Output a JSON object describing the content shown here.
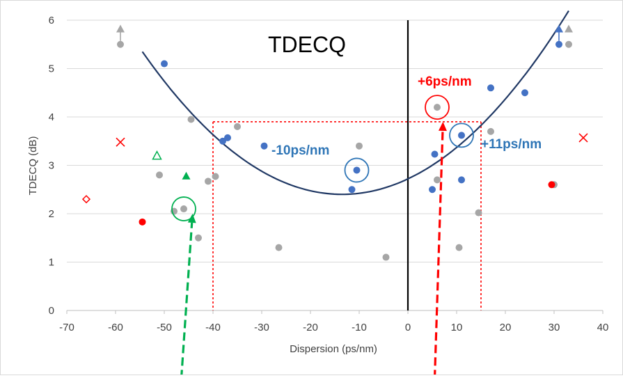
{
  "chart_data": {
    "type": "scatter",
    "title": "TDECQ",
    "xlabel": "Dispersion (ps/nm)",
    "ylabel": "TDECQ (dB)",
    "xlim": [
      -70,
      40
    ],
    "ylim": [
      0,
      6
    ],
    "x_ticks": [
      "-70",
      "-60",
      "-50",
      "-40",
      "-30",
      "-20",
      "-10",
      "0",
      "10",
      "20",
      "30",
      "40"
    ],
    "y_ticks": [
      "0",
      "1",
      "2",
      "3",
      "4",
      "5",
      "6"
    ],
    "grid": "horizontal",
    "colors": {
      "gray": "#a6a6a6",
      "blue": "#4472c4",
      "red": "#ff0000",
      "green": "#00b050",
      "curve": "#203864",
      "annotation_blue": "#2e75b6",
      "annotation_red": "#ff0000",
      "axis_zero": "#000000"
    },
    "series": [
      {
        "marker": "circle",
        "color": "gray",
        "points": [
          [
            -59,
            5.5
          ],
          [
            -51,
            2.8
          ],
          [
            -48,
            2.05
          ],
          [
            -46,
            2.1
          ],
          [
            -44.5,
            3.95
          ],
          [
            -43,
            1.5
          ],
          [
            -41,
            2.67
          ],
          [
            -39.5,
            2.77
          ],
          [
            -35,
            3.8
          ],
          [
            -26.5,
            1.3
          ],
          [
            -10,
            3.4
          ],
          [
            -4.5,
            1.1
          ],
          [
            6,
            4.2
          ],
          [
            6,
            2.7
          ],
          [
            10.5,
            1.3
          ],
          [
            14.5,
            2.02
          ],
          [
            17,
            3.7
          ],
          [
            30,
            2.6
          ],
          [
            33,
            5.5
          ]
        ]
      },
      {
        "marker": "circle",
        "color": "blue",
        "points": [
          [
            -50,
            5.1
          ],
          [
            -38,
            3.5
          ],
          [
            -37,
            3.57
          ],
          [
            -29.5,
            3.4
          ],
          [
            -11.5,
            2.5
          ],
          [
            -10.5,
            2.9
          ],
          [
            5,
            2.5
          ],
          [
            5.5,
            3.23
          ],
          [
            11,
            3.62
          ],
          [
            11,
            2.7
          ],
          [
            17,
            4.6
          ],
          [
            24,
            4.5
          ],
          [
            31,
            5.5
          ]
        ]
      },
      {
        "marker": "circle",
        "color": "red",
        "points": [
          [
            -54.5,
            1.83
          ],
          [
            29.5,
            2.6
          ]
        ]
      },
      {
        "marker": "x",
        "color": "red",
        "points": [
          [
            -59,
            3.48
          ],
          [
            36,
            3.57
          ]
        ]
      },
      {
        "marker": "diamond-open",
        "color": "red",
        "points": [
          [
            -66,
            2.3
          ]
        ]
      },
      {
        "marker": "triangle-open",
        "color": "green",
        "points": [
          [
            -51.5,
            3.2
          ]
        ]
      },
      {
        "marker": "triangle",
        "color": "green",
        "points": [
          [
            -45.5,
            2.78
          ]
        ]
      },
      {
        "marker": "triangle",
        "color": "gray",
        "points": [
          [
            -59,
            5.82
          ],
          [
            33,
            5.82
          ]
        ]
      },
      {
        "marker": "triangle",
        "color": "blue",
        "points": [
          [
            31,
            5.82
          ]
        ]
      }
    ],
    "trend_curve": {
      "type": "quadratic",
      "vertex": [
        -13.5,
        2.4
      ],
      "coefficient": 0.001755,
      "x_range": [
        -54.5,
        33
      ]
    },
    "threshold_box": {
      "x": [
        -40,
        15
      ],
      "y_top": 3.9,
      "color": "red"
    },
    "circled_points": [
      {
        "x": -10.5,
        "y": 2.9,
        "color": "annotation_blue"
      },
      {
        "x": 11,
        "y": 3.62,
        "color": "annotation_blue"
      },
      {
        "x": 6,
        "y": 4.2,
        "color": "annotation_red"
      },
      {
        "x": -46,
        "y": 2.1,
        "color": "green"
      }
    ],
    "annotations": [
      {
        "text": "-10ps/nm",
        "color": "annotation_blue",
        "x": -28,
        "y": 3.22
      },
      {
        "text": "+11ps/nm",
        "color": "annotation_blue",
        "x": 15,
        "y": 3.35
      },
      {
        "text": "+6ps/nm",
        "color": "annotation_red",
        "x": 2,
        "y": 4.65
      }
    ],
    "arrows": [
      {
        "color": "red",
        "from_x": 5.5,
        "from_y": -1.4,
        "to_x": 7.2,
        "to_y": 3.9
      },
      {
        "color": "green",
        "from_x": -46.5,
        "from_y": -1.4,
        "to_x": -44.2,
        "to_y": 2.0
      }
    ],
    "small_up_arrows": [
      {
        "color": "gray",
        "x": -59,
        "from_y": 5.5,
        "to_y": 5.82
      },
      {
        "color": "blue",
        "x": 31,
        "from_y": 5.5,
        "to_y": 5.82
      }
    ]
  }
}
